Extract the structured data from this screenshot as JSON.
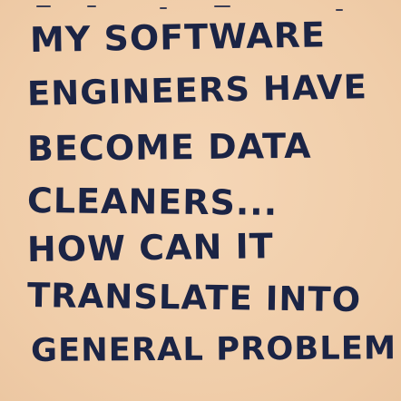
{
  "note": {
    "lines": [
      "MY SOFTWARE",
      "ENGINEERS HAVE",
      "BECOME DATA",
      "CLEANERS...",
      "HOW CAN IT",
      "TRANSLATE INTO",
      "GENERAL PROBLEM"
    ],
    "ink_color": "#1b2445",
    "paper_color": "#f2d0ae"
  }
}
